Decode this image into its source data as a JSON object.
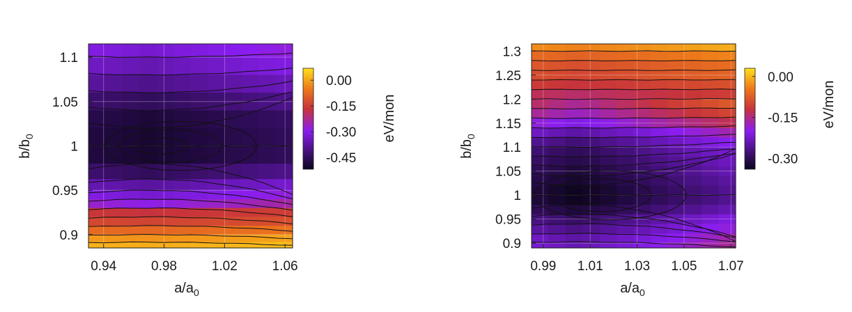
{
  "chart_data": [
    {
      "type": "heatmap",
      "title": "",
      "xlabel": "a/a",
      "xlabel_sub": "0",
      "ylabel": "b/b",
      "ylabel_sub": "0",
      "xlim": [
        0.93,
        1.065
      ],
      "ylim": [
        0.885,
        1.115
      ],
      "xticks": [
        0.94,
        0.98,
        1.02,
        1.06
      ],
      "xtick_labels": [
        "0.94",
        "0.98",
        "1.02",
        "1.06"
      ],
      "yticks": [
        0.9,
        0.95,
        1.0,
        1.05,
        1.1
      ],
      "ytick_labels": [
        "0.9",
        "0.95",
        "1",
        "1.05",
        "1.1"
      ],
      "colorbar": {
        "label": "eV/mon",
        "min": -0.52,
        "max": 0.07,
        "ticks": [
          0.0,
          -0.15,
          -0.3,
          -0.45
        ],
        "tick_labels": [
          "0.00",
          "-0.15",
          "-0.30",
          "-0.45"
        ]
      },
      "minimum": {
        "x": 0.97,
        "y": 1.0
      },
      "rows": [
        {
          "y": 1.11,
          "value": -0.33
        },
        {
          "y": 1.09,
          "value": -0.36
        },
        {
          "y": 1.07,
          "value": -0.4
        },
        {
          "y": 1.05,
          "value": -0.45
        },
        {
          "y": 1.03,
          "value": -0.49
        },
        {
          "y": 1.01,
          "value": -0.5
        },
        {
          "y": 0.99,
          "value": -0.5
        },
        {
          "y": 0.97,
          "value": -0.45
        },
        {
          "y": 0.955,
          "value": -0.38
        },
        {
          "y": 0.945,
          "value": -0.33
        },
        {
          "y": 0.935,
          "value": -0.29
        },
        {
          "y": 0.925,
          "value": -0.17
        },
        {
          "y": 0.915,
          "value": -0.14
        },
        {
          "y": 0.905,
          "value": -0.08
        },
        {
          "y": 0.895,
          "value": -0.02
        },
        {
          "y": 0.888,
          "value": 0.01
        }
      ],
      "x_cells": 12,
      "x_shift_per_unit": 0.6
    },
    {
      "type": "heatmap",
      "title": "",
      "xlabel": "a/a",
      "xlabel_sub": "0",
      "ylabel": "b/b",
      "ylabel_sub": "0",
      "xlim": [
        0.985,
        1.072
      ],
      "ylim": [
        0.89,
        1.315
      ],
      "xticks": [
        0.99,
        1.01,
        1.03,
        1.05,
        1.07
      ],
      "xtick_labels": [
        "0.99",
        "1.01",
        "1.03",
        "1.05",
        "1.07"
      ],
      "yticks": [
        0.9,
        0.95,
        1.0,
        1.05,
        1.1,
        1.15,
        1.2,
        1.25,
        1.3
      ],
      "ytick_labels": [
        "0.9",
        "0.95",
        "1",
        "1.05",
        "1.1",
        "1.15",
        "1.2",
        "1.25",
        "1.3"
      ],
      "colorbar": {
        "label": "eV/mon",
        "min": -0.34,
        "max": 0.03,
        "ticks": [
          0.0,
          -0.15,
          -0.3
        ],
        "tick_labels": [
          "0.00",
          "-0.15",
          "-0.30"
        ]
      },
      "minimum": {
        "x": 1.005,
        "y": 1.0
      },
      "rows": [
        {
          "y": 1.31,
          "value": -0.04
        },
        {
          "y": 1.29,
          "value": -0.07
        },
        {
          "y": 1.27,
          "value": -0.09
        },
        {
          "y": 1.25,
          "value": -0.1
        },
        {
          "y": 1.23,
          "value": -0.12
        },
        {
          "y": 1.21,
          "value": -0.14
        },
        {
          "y": 1.19,
          "value": -0.16
        },
        {
          "y": 1.17,
          "value": -0.18
        },
        {
          "y": 1.15,
          "value": -0.21
        },
        {
          "y": 1.13,
          "value": -0.25
        },
        {
          "y": 1.11,
          "value": -0.28
        },
        {
          "y": 1.09,
          "value": -0.3
        },
        {
          "y": 1.07,
          "value": -0.31
        },
        {
          "y": 1.05,
          "value": -0.32
        },
        {
          "y": 1.03,
          "value": -0.33
        },
        {
          "y": 1.01,
          "value": -0.34
        },
        {
          "y": 0.99,
          "value": -0.34
        },
        {
          "y": 0.97,
          "value": -0.32
        },
        {
          "y": 0.95,
          "value": -0.29
        },
        {
          "y": 0.93,
          "value": -0.27
        },
        {
          "y": 0.91,
          "value": -0.25
        },
        {
          "y": 0.895,
          "value": -0.24
        }
      ],
      "x_cells": 12,
      "x_shift_per_unit": 0.9
    }
  ]
}
